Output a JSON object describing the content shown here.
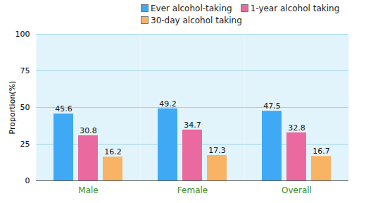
{
  "chart_data": {
    "type": "bar",
    "y_label": "Proportion(%)",
    "categories": [
      "Male",
      "Female",
      "Overall"
    ],
    "series": [
      {
        "name": "Ever alcohol-taking",
        "color": "#3fa9f5",
        "values": [
          45.6,
          49.2,
          47.5
        ]
      },
      {
        "name": "1-year alcohol taking",
        "color": "#ea6a9f",
        "values": [
          30.8,
          34.7,
          32.8
        ]
      },
      {
        "name": "30-day alcohol taking",
        "color": "#f8b464",
        "values": [
          16.2,
          17.3,
          16.7
        ]
      }
    ],
    "ylim": [
      0,
      100
    ],
    "yticks": [
      0,
      25,
      50,
      75,
      100
    ],
    "grid": true,
    "data_labels": true,
    "legend": "top right"
  }
}
